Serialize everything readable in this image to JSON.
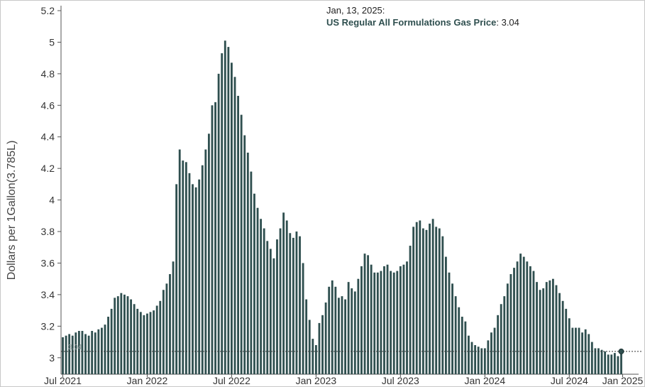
{
  "chart_data": {
    "type": "bar",
    "ylabel": "Dollars per 1Gallon(3.785L)",
    "ylim": [
      2.9,
      5.2
    ],
    "yticks": [
      "3",
      "3.2",
      "3.4",
      "3.6",
      "3.8",
      "4",
      "4.2",
      "4.4",
      "4.6",
      "4.8",
      "5",
      "5.2"
    ],
    "xtick_labels": [
      "Jul 2021",
      "Jan 2022",
      "Jul 2022",
      "Jan 2023",
      "Jul 2023",
      "Jan 2024",
      "Jul 2024",
      "Jan 2025"
    ],
    "bar_color": "#2f4f4f",
    "reference_value": 3.04,
    "reference_label": "3.04",
    "tooltip": {
      "date": "Jan, 13, 2025:",
      "series": "US Regular All Formulations Gas Price",
      "value": ": 3.04"
    },
    "series": [
      {
        "values": [
          3.13,
          3.14,
          3.15,
          3.14,
          3.16,
          3.17,
          3.17,
          3.15,
          3.14,
          3.17,
          3.16,
          3.18,
          3.19,
          3.21,
          3.26,
          3.31,
          3.38,
          3.39,
          3.41,
          3.4,
          3.39,
          3.37,
          3.34,
          3.31,
          3.29,
          3.27,
          3.28,
          3.29,
          3.3,
          3.33,
          3.36,
          3.43,
          3.47,
          3.53,
          3.61,
          4.1,
          4.32,
          4.25,
          4.24,
          4.17,
          4.1,
          4.08,
          4.13,
          4.22,
          4.32,
          4.42,
          4.6,
          4.62,
          4.8,
          4.93,
          5.01,
          4.97,
          4.87,
          4.78,
          4.66,
          4.54,
          4.41,
          4.3,
          4.18,
          4.04,
          3.95,
          3.88,
          3.82,
          3.74,
          3.69,
          3.63,
          3.75,
          3.82,
          3.92,
          3.87,
          3.79,
          3.76,
          3.8,
          3.77,
          3.6,
          3.37,
          3.24,
          3.12,
          3.08,
          3.22,
          3.27,
          3.35,
          3.45,
          3.49,
          3.45,
          3.38,
          3.39,
          3.37,
          3.48,
          3.44,
          3.42,
          3.5,
          3.58,
          3.66,
          3.65,
          3.59,
          3.54,
          3.54,
          3.55,
          3.58,
          3.59,
          3.55,
          3.54,
          3.55,
          3.58,
          3.59,
          3.61,
          3.71,
          3.83,
          3.86,
          3.87,
          3.82,
          3.81,
          3.85,
          3.88,
          3.83,
          3.82,
          3.77,
          3.64,
          3.54,
          3.47,
          3.39,
          3.32,
          3.26,
          3.23,
          3.14,
          3.1,
          3.08,
          3.07,
          3.06,
          3.06,
          3.11,
          3.16,
          3.19,
          3.27,
          3.34,
          3.39,
          3.47,
          3.53,
          3.57,
          3.61,
          3.66,
          3.64,
          3.61,
          3.58,
          3.55,
          3.48,
          3.43,
          3.44,
          3.48,
          3.49,
          3.5,
          3.46,
          3.41,
          3.36,
          3.31,
          3.25,
          3.19,
          3.19,
          3.19,
          3.16,
          3.18,
          3.15,
          3.1,
          3.06,
          3.06,
          3.05,
          3.04,
          3.02,
          3.02,
          3.03,
          3.01,
          3.04
        ]
      }
    ]
  }
}
